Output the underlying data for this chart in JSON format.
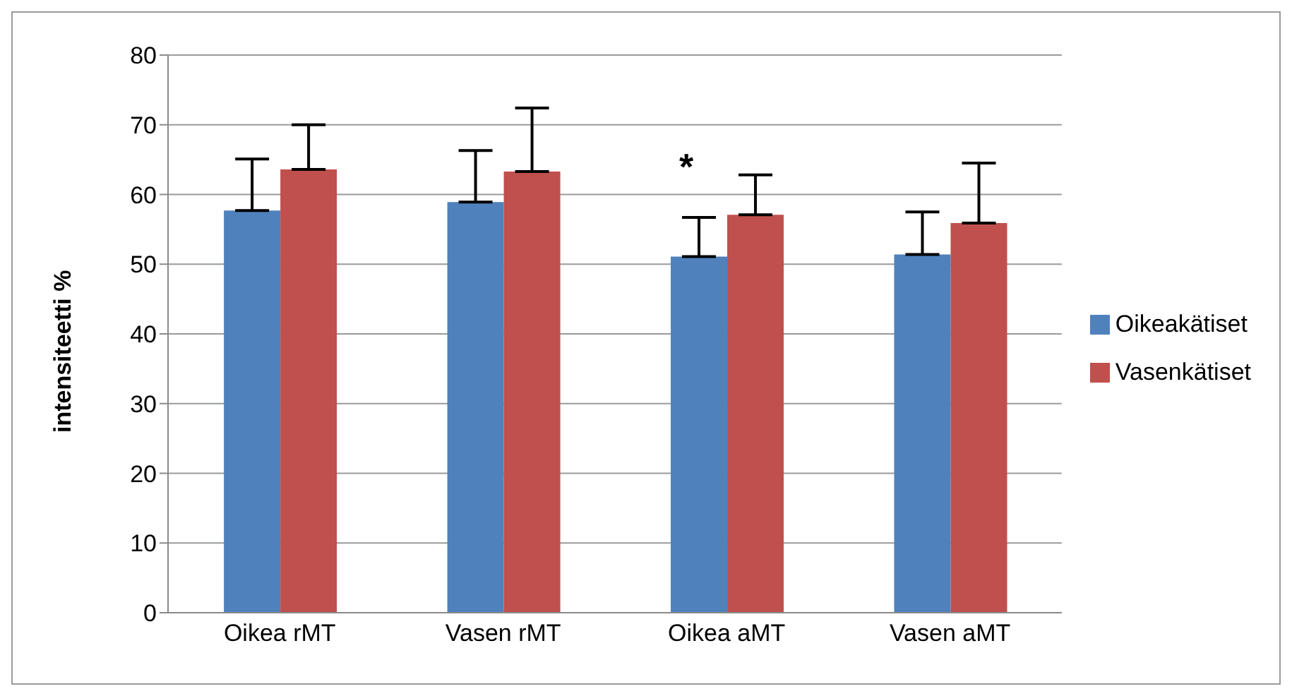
{
  "chart_data": {
    "type": "bar",
    "ylabel": "intensiteetti %",
    "categories": [
      "Oikea rMT",
      "Vasen rMT",
      "Oikea aMT",
      "Vasen aMT"
    ],
    "series": [
      {
        "name": "Oikeakätiset",
        "color": "#4f81bd",
        "values": [
          57.7,
          58.9,
          51.1,
          51.4
        ],
        "errors": [
          [
            57.7,
            65.1
          ],
          [
            58.9,
            66.3
          ],
          [
            51.1,
            56.7
          ],
          [
            51.4,
            57.5
          ]
        ]
      },
      {
        "name": "Vasenkätiset",
        "color": "#c0504d",
        "values": [
          63.6,
          63.3,
          57.1,
          55.9
        ],
        "errors": [
          [
            63.6,
            70.0
          ],
          [
            63.3,
            72.4
          ],
          [
            57.1,
            62.8
          ],
          [
            55.9,
            64.5
          ]
        ]
      }
    ],
    "ylim": [
      0,
      80
    ],
    "yticks": [
      0,
      10,
      20,
      30,
      40,
      50,
      60,
      70,
      80
    ],
    "grid": "y",
    "legend": "right",
    "annotations": [
      "*"
    ]
  }
}
